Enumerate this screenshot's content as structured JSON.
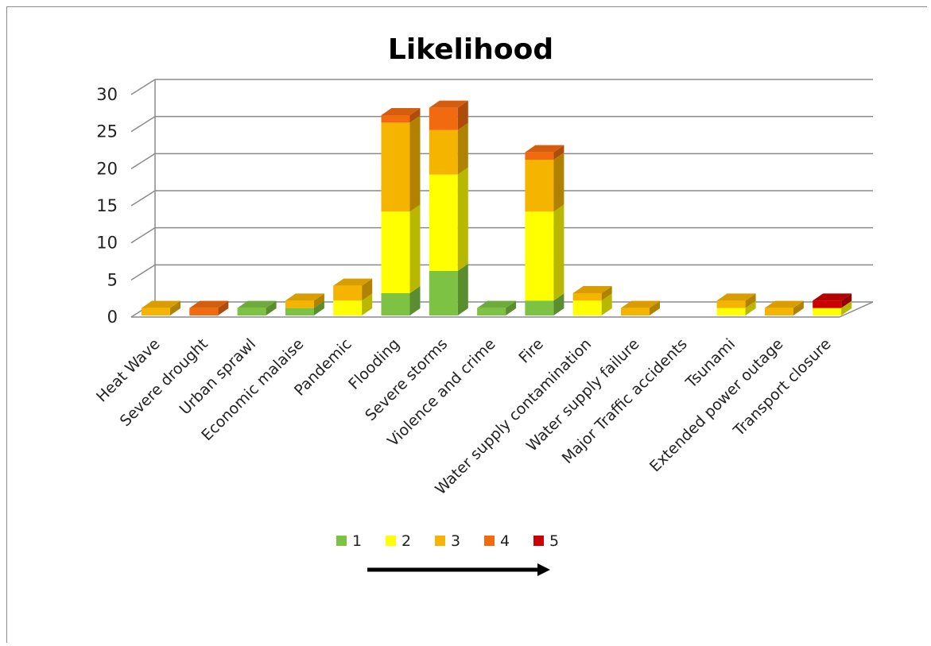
{
  "chart_data": {
    "type": "bar",
    "stacked": true,
    "three_d": true,
    "title": "Likelihood",
    "xlabel": "",
    "ylabel": "",
    "ylim": [
      0,
      30
    ],
    "yticks": [
      0,
      5,
      10,
      15,
      20,
      25,
      30
    ],
    "grid": true,
    "legend_position": "bottom",
    "categories": [
      "Heat Wave",
      "Severe drought",
      "Urban sprawl",
      "Economic malaise",
      "Pandemic",
      "Flooding",
      "Severe storms",
      "Violence and crime",
      "Fire",
      "Water supply contamination",
      "Water supply failure",
      "Major Traffic accidents",
      "Tsunami",
      "Extended power outage",
      "Transport closure"
    ],
    "series": [
      {
        "name": "1",
        "color": "#7dc242",
        "values": [
          0,
          0,
          1,
          1,
          0,
          3,
          6,
          1,
          2,
          0,
          0,
          0,
          0,
          0,
          0
        ]
      },
      {
        "name": "2",
        "color": "#ffff00",
        "values": [
          0,
          0,
          0,
          0,
          2,
          11,
          13,
          0,
          12,
          2,
          0,
          0,
          1,
          0,
          1
        ]
      },
      {
        "name": "3",
        "color": "#f5b400",
        "values": [
          1,
          0,
          0,
          1,
          2,
          12,
          6,
          0,
          7,
          1,
          1,
          0,
          1,
          1,
          0
        ]
      },
      {
        "name": "4",
        "color": "#f26a10",
        "values": [
          0,
          1,
          0,
          0,
          0,
          1,
          3,
          0,
          1,
          0,
          0,
          0,
          0,
          0,
          0
        ]
      },
      {
        "name": "5",
        "color": "#cc0000",
        "values": [
          0,
          0,
          0,
          0,
          0,
          0,
          0,
          0,
          0,
          0,
          0,
          0,
          0,
          0,
          1
        ]
      }
    ]
  },
  "decoration": {
    "arrow": "right-arrow-icon"
  }
}
